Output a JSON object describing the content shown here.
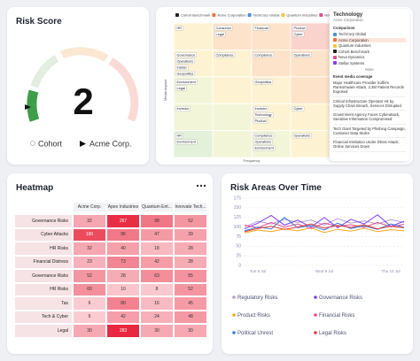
{
  "risk_score": {
    "title": "Risk Score",
    "value": 2,
    "legend": [
      "Cohort",
      "Acme Corp."
    ]
  },
  "risk_matrix": {
    "legend": [
      "Cohort Benchmark",
      "Acme Corporation",
      "TechCorp Global",
      "Quantum Industries",
      "Nova Dynamics"
    ],
    "y_label": "Media Impact",
    "x_label": "Frequency",
    "rows": [
      [
        [
          "HR"
        ],
        [
          "Consumer",
          "Legal"
        ],
        [
          "Financial"
        ],
        [
          "Product",
          "Cyber"
        ]
      ],
      [
        [
          "Governance",
          "Operations",
          "Insider",
          "Geopolitics"
        ],
        [
          "Compliance"
        ],
        [
          "Compliance"
        ],
        [
          "Operations"
        ]
      ],
      [
        [
          "Environment",
          "Legal"
        ],
        [],
        [
          "Geopolitics"
        ],
        []
      ],
      [
        [
          "Investor"
        ],
        [],
        [
          "Investor",
          "Technology",
          "Product"
        ],
        [
          "Cyber"
        ]
      ],
      [
        [
          "HR",
          "Environment"
        ],
        [],
        [
          "Compliance",
          "Operations",
          "Environment"
        ],
        [
          "Operations"
        ]
      ]
    ],
    "panel": {
      "title": "Technology",
      "subtitle": "Acme Corporation",
      "comparison_title": "Comparison",
      "comparison": [
        "TechCorp Global",
        "Acme Corporation",
        "Quantum Industries",
        "Cohort Benchmark",
        "Nova Dynamics",
        "Stellar Systems"
      ],
      "more": "More",
      "events_title": "Event media coverage",
      "events": [
        "Major Healthcare Provider Suffers Ransomware Attack, 2.3M Patient Records Exposed",
        "Critical Infrastructure Operator Hit by Supply Chain Breach, Services Disrupted",
        "Government Agency Faces Cyberattack, Sensitive Information Compromised",
        "Tech Giant Targeted by Phishing Campaign, Customer Data Stolen",
        "Financial Institution Under DDoS Attack, Online Services Down"
      ]
    }
  },
  "heatmap": {
    "title": "Heatmap",
    "columns": [
      "Acme Corp.",
      "Apex Industries",
      "Quantum Ent...",
      "Innovate Tech..."
    ],
    "rows": [
      {
        "label": "Governance Risks",
        "values": [
          32,
          267,
          98,
          52
        ]
      },
      {
        "label": "Cyber Attacks",
        "values": [
          190,
          96,
          47,
          39
        ]
      },
      {
        "label": "HR Risks",
        "values": [
          32,
          40,
          18,
          28
        ]
      },
      {
        "label": "Financial Distress",
        "values": [
          23,
          73,
          42,
          28
        ]
      },
      {
        "label": "Governance Risks",
        "values": [
          52,
          28,
          63,
          55
        ]
      },
      {
        "label": "HR Risks",
        "values": [
          60,
          10,
          8,
          52
        ]
      },
      {
        "label": "Tax",
        "values": [
          6,
          80,
          16,
          45
        ]
      },
      {
        "label": "Tech & Cyber",
        "values": [
          6,
          42,
          24,
          48
        ]
      },
      {
        "label": "Legal",
        "values": [
          30,
          283,
          30,
          30
        ]
      }
    ]
  },
  "chart_data": {
    "type": "line",
    "title": "Risk Areas Over Time",
    "categories": [
      null,
      "Tue 8 Jul",
      null,
      null,
      null,
      null,
      "Wed 9 Jul",
      null,
      null,
      null,
      null,
      "Thu 10 Jul",
      null
    ],
    "ylim": [
      0,
      175
    ],
    "yticks": [
      0,
      25,
      50,
      75,
      100,
      125,
      150,
      175
    ],
    "grid": true,
    "series": [
      {
        "name": "Regulatory Risks",
        "color": "#b39ddb",
        "values": [
          100,
          115,
          108,
          120,
          112,
          118,
          105,
          122,
          110,
          116,
          108,
          119,
          112
        ]
      },
      {
        "name": "Governance Risks",
        "color": "#7e3ff2",
        "values": [
          95,
          110,
          130,
          105,
          118,
          100,
          125,
          98,
          120,
          108,
          132,
          102,
          115
        ]
      },
      {
        "name": "Product Risks",
        "color": "#f5a623",
        "values": [
          85,
          92,
          88,
          95,
          90,
          98,
          86,
          94,
          89,
          97,
          88,
          93,
          90
        ]
      },
      {
        "name": "Financial Risks",
        "color": "#e84a8a",
        "values": [
          105,
          98,
          112,
          100,
          108,
          96,
          110,
          102,
          106,
          99,
          112,
          101,
          107
        ]
      },
      {
        "name": "Political Unrest",
        "color": "#3b7dd8",
        "values": [
          90,
          100,
          95,
          125,
          98,
          104,
          92,
          110,
          96,
          103,
          94,
          108,
          99
        ]
      },
      {
        "name": "Legal Risks",
        "color": "#e53935",
        "values": [
          88,
          96,
          102,
          94,
          100,
          108,
          97,
          104,
          99,
          106,
          95,
          102,
          98
        ]
      }
    ]
  }
}
